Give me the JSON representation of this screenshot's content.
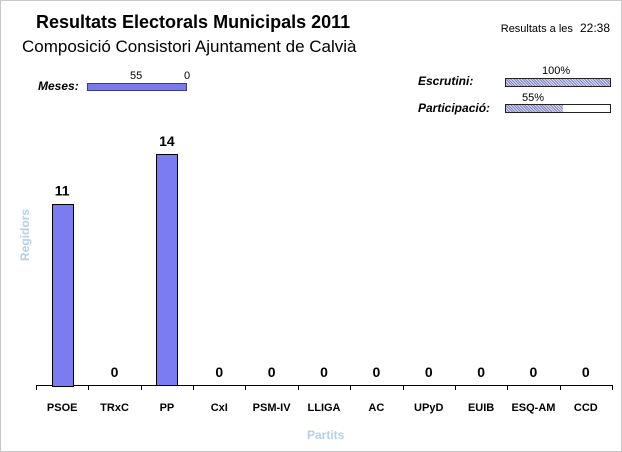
{
  "header": {
    "title": "Resultats Electorals Municipals 2011",
    "subtitle": "Composició Consistori Ajuntament de Calvià",
    "time_label": "Resultats a les",
    "time_value": "22:38"
  },
  "meses": {
    "label": "Meses:",
    "left_value": "55",
    "right_value": "0"
  },
  "escrutini": {
    "label": "Escrutini:",
    "percent_text": "100%",
    "fraction": 1.0
  },
  "participacio": {
    "label": "Participació:",
    "percent_text": "55%",
    "fraction": 0.55
  },
  "colors": {
    "bar_fill": "#7b7bf2",
    "bar_stroke": "#000000",
    "axis_title": "#b6cfe8"
  },
  "chart_data": {
    "type": "bar",
    "categories": [
      "PSOE",
      "TRxC",
      "PP",
      "CxI",
      "PSM-IV",
      "LLIGA",
      "AC",
      "UPyD",
      "EUIB",
      "ESQ-AM",
      "CCD"
    ],
    "values": [
      11,
      0,
      14,
      0,
      0,
      0,
      0,
      0,
      0,
      0,
      0
    ],
    "xlabel": "Partits",
    "ylabel": "Regidors",
    "ylim": [
      0,
      14
    ],
    "grid": false,
    "data_labels": true
  }
}
